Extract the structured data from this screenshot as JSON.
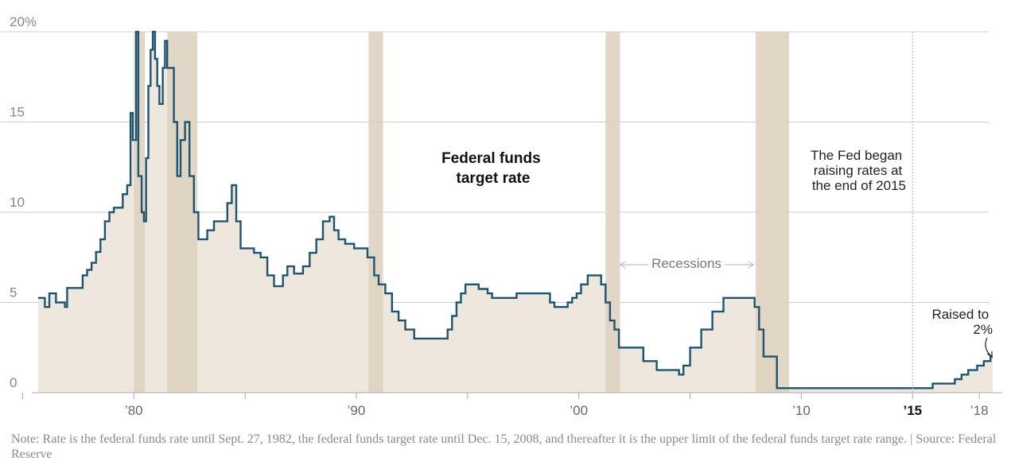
{
  "chart_data": {
    "type": "line",
    "title": "Federal funds target rate",
    "ylabel": "",
    "xlabel": "",
    "ylim": [
      0,
      20
    ],
    "xlim": [
      1975.7,
      2018.6
    ],
    "y_ticks": [
      0,
      5,
      10,
      15,
      20
    ],
    "y_tick_labels": [
      "0",
      "5",
      "10",
      "15",
      "20%"
    ],
    "x_ticks": [
      1980,
      1990,
      2000,
      2010,
      2015,
      2018
    ],
    "x_tick_labels": [
      "’80",
      "’90",
      "’00",
      "’10",
      "’15",
      "’18"
    ],
    "x_tick_bold": [
      false,
      false,
      false,
      false,
      true,
      false
    ],
    "minor_ticks": [
      1975,
      1985,
      1995,
      2005
    ],
    "recessions": [
      [
        1980.0,
        1980.5
      ],
      [
        1981.5,
        1982.85
      ],
      [
        1990.55,
        1991.2
      ],
      [
        2001.2,
        2001.85
      ],
      [
        2007.95,
        2009.45
      ]
    ],
    "recessions_label": "Recessions",
    "series": [
      {
        "name": "Federal funds target rate",
        "color": "#1f5470",
        "step": true,
        "x": [
          1975.7,
          1976.0,
          1976.2,
          1976.5,
          1976.9,
          1977.0,
          1977.7,
          1977.9,
          1978.1,
          1978.3,
          1978.5,
          1978.7,
          1978.9,
          1979.1,
          1979.5,
          1979.7,
          1979.85,
          1979.95,
          1980.1,
          1980.2,
          1980.35,
          1980.45,
          1980.55,
          1980.65,
          1980.75,
          1980.85,
          1980.95,
          1981.05,
          1981.15,
          1981.3,
          1981.4,
          1981.5,
          1981.8,
          1981.95,
          1982.1,
          1982.3,
          1982.5,
          1982.7,
          1982.9,
          1983.3,
          1983.6,
          1984.2,
          1984.4,
          1984.6,
          1984.8,
          1985.0,
          1985.4,
          1985.7,
          1986.0,
          1986.3,
          1986.7,
          1986.9,
          1987.2,
          1987.6,
          1987.9,
          1988.2,
          1988.5,
          1988.8,
          1989.0,
          1989.2,
          1989.5,
          1989.9,
          1990.5,
          1990.8,
          1991.0,
          1991.3,
          1991.6,
          1991.9,
          1992.2,
          1992.6,
          1993.0,
          1994.1,
          1994.3,
          1994.5,
          1994.7,
          1994.9,
          1995.5,
          1995.9,
          1996.1,
          1997.2,
          1998.7,
          1998.9,
          1999.5,
          1999.7,
          1999.9,
          2000.1,
          2000.4,
          2000.9,
          2001.0,
          2001.2,
          2001.4,
          2001.6,
          2001.8,
          2002.9,
          2003.5,
          2004.5,
          2004.7,
          2005.0,
          2005.5,
          2006.0,
          2006.5,
          2007.7,
          2007.9,
          2008.1,
          2008.3,
          2008.9,
          2015.9,
          2016.9,
          2017.2,
          2017.5,
          2017.9,
          2018.2,
          2018.5
        ],
        "values": [
          5.25,
          4.75,
          5.5,
          5.0,
          4.75,
          5.8,
          6.5,
          6.8,
          7.2,
          7.8,
          8.5,
          9.5,
          10.0,
          10.25,
          11.0,
          11.5,
          15.5,
          14.0,
          20.0,
          12.0,
          10.0,
          9.5,
          13.0,
          17.0,
          19.0,
          20.0,
          18.5,
          17.0,
          16.0,
          18.0,
          19.5,
          18.0,
          15.0,
          12.0,
          14.0,
          15.0,
          12.0,
          10.0,
          8.5,
          9.0,
          9.5,
          10.5,
          11.5,
          9.5,
          8.0,
          8.0,
          7.75,
          7.5,
          6.5,
          5.9,
          6.5,
          7.0,
          6.6,
          7.0,
          7.75,
          8.5,
          9.5,
          9.75,
          9.0,
          8.5,
          8.25,
          8.0,
          7.5,
          6.5,
          6.0,
          5.5,
          4.5,
          4.0,
          3.5,
          3.0,
          3.0,
          3.5,
          4.25,
          5.0,
          5.5,
          6.0,
          5.75,
          5.5,
          5.25,
          5.5,
          5.0,
          4.75,
          5.0,
          5.25,
          5.5,
          6.0,
          6.5,
          6.5,
          6.0,
          5.0,
          4.0,
          3.5,
          2.5,
          1.75,
          1.25,
          1.0,
          1.5,
          2.5,
          3.5,
          4.5,
          5.25,
          5.25,
          4.75,
          3.5,
          2.0,
          0.25,
          0.5,
          0.75,
          1.0,
          1.25,
          1.5,
          1.75,
          2.0
        ]
      }
    ],
    "annotations": {
      "rate_hike": [
        "The Fed began",
        "raising rates at",
        "the end of 2015"
      ],
      "raised": [
        "Raised to",
        "2%"
      ]
    }
  },
  "note": "Note: Rate is the federal funds rate until Sept. 27, 1982, the federal funds target rate until Dec. 15, 2008, and thereafter it is the upper limit of the federal funds target rate range. | Source: Federal Reserve",
  "colors": {
    "area": "#eee7dd",
    "recession": "#ddd0bd",
    "line": "#1f5470",
    "grid": "#cccccc",
    "axis": "#aaaaaa"
  }
}
